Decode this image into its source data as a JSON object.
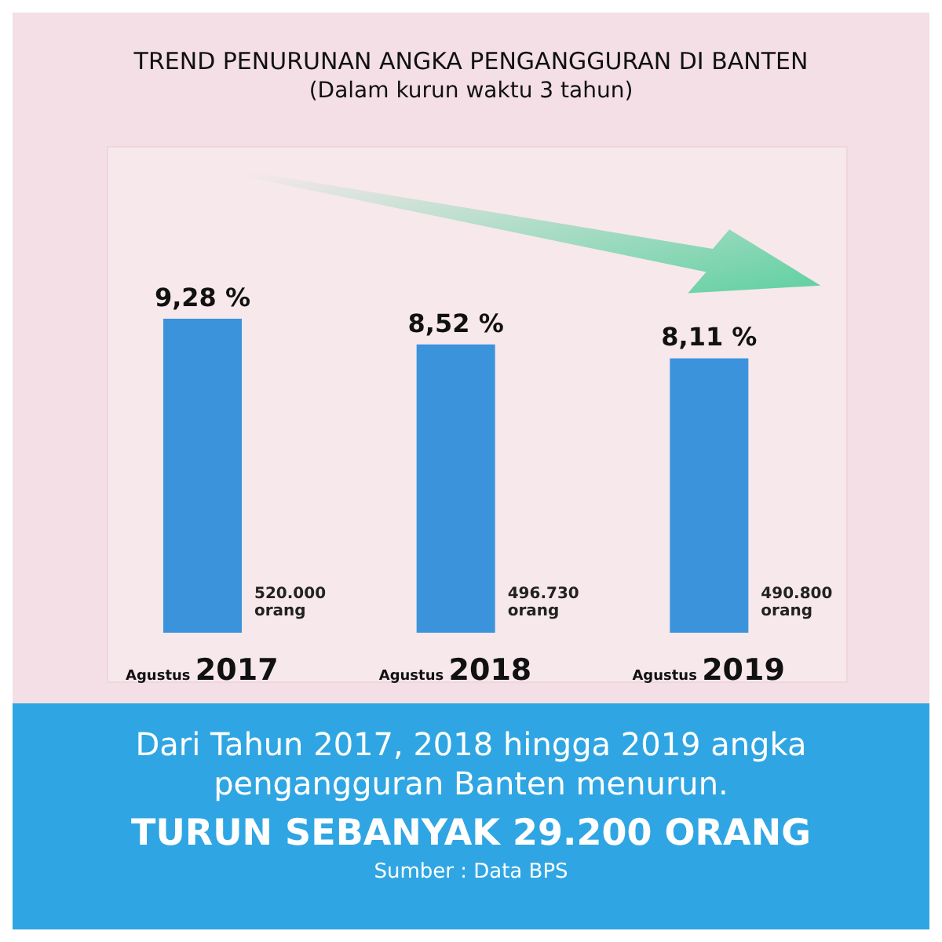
{
  "chart_data": {
    "type": "bar",
    "title": "TREND PENURUNAN ANGKA PENGANGGURAN DI BANTEN",
    "subtitle": "(Dalam kurun waktu 3 tahun)",
    "categories": [
      "Agustus 2017",
      "Agustus 2018",
      "Agustus 2019"
    ],
    "values": [
      9.28,
      8.52,
      8.11
    ],
    "color": "#3b93dc",
    "value_labels": [
      "9,28 %",
      "8,52 %",
      "8,11 %"
    ],
    "annotations": [
      "520.000 orang",
      "496.730 orang",
      "490.800 orang",
      "Dari Tahun 2017, 2018 hingga 2019 angka pengangguran Banten menurun.",
      "TURUN SEBANYAK 29.200 ORANG",
      "Sumber : Data BPS"
    ]
  }
}
